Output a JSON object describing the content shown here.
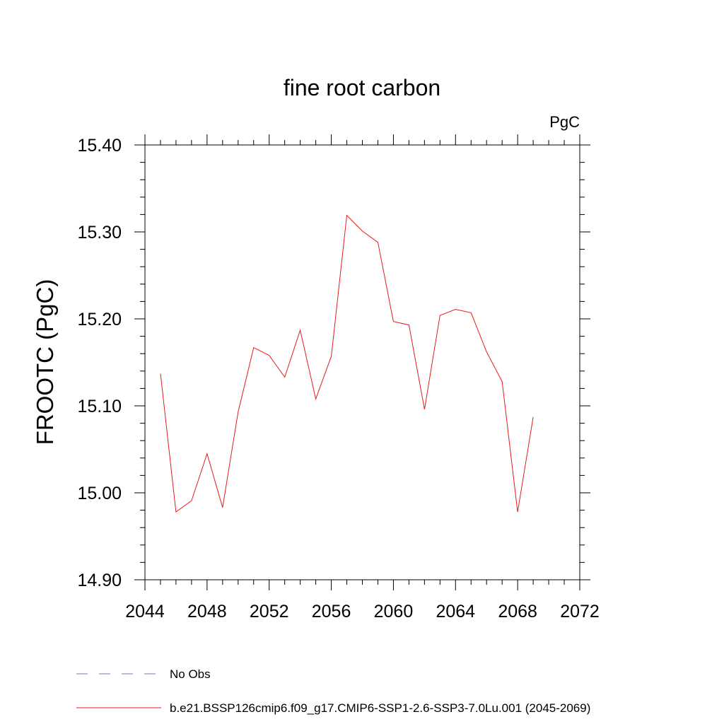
{
  "chart_data": {
    "type": "line",
    "title": "fine root carbon",
    "units_label": "PgC",
    "ylabel": "FROOTC  (PgC)",
    "xlabel": "",
    "xlim": [
      2044,
      2072
    ],
    "ylim": [
      14.9,
      15.4
    ],
    "x_ticks": [
      2044,
      2048,
      2052,
      2056,
      2060,
      2064,
      2068,
      2072
    ],
    "x_tick_labels": [
      "2044",
      "2048",
      "2052",
      "2056",
      "2060",
      "2064",
      "2068",
      "2072"
    ],
    "y_ticks": [
      14.9,
      15.0,
      15.1,
      15.2,
      15.3,
      15.4
    ],
    "y_tick_labels": [
      "14.90",
      "15.00",
      "15.10",
      "15.20",
      "15.30",
      "15.40"
    ],
    "grid": false,
    "legend_position": "bottom-left",
    "series": [
      {
        "name": "b.e21.BSSP126cmip6.f09_g17.CMIP6-SSP1-2.6-SSP3-7.0Lu.001 (2045-2069)",
        "color": "#e31a1c",
        "x": [
          2045,
          2046,
          2047,
          2048,
          2049,
          2050,
          2051,
          2052,
          2053,
          2054,
          2055,
          2056,
          2057,
          2058,
          2059,
          2060,
          2061,
          2062,
          2063,
          2064,
          2065,
          2066,
          2067,
          2068,
          2069
        ],
        "values": [
          15.137,
          14.978,
          14.991,
          15.045,
          14.983,
          15.093,
          15.167,
          15.158,
          15.133,
          15.187,
          15.108,
          15.157,
          15.319,
          15.301,
          15.288,
          15.197,
          15.193,
          15.096,
          15.204,
          15.211,
          15.207,
          15.162,
          15.128,
          14.978,
          15.087
        ]
      }
    ],
    "legend": [
      {
        "label": "No Obs",
        "color": "#7b6fb0",
        "dash": true
      },
      {
        "label": "b.e21.BSSP126cmip6.f09_g17.CMIP6-SSP1-2.6-SSP3-7.0Lu.001 (2045-2069)",
        "color": "#e31a1c",
        "dash": false
      }
    ]
  }
}
